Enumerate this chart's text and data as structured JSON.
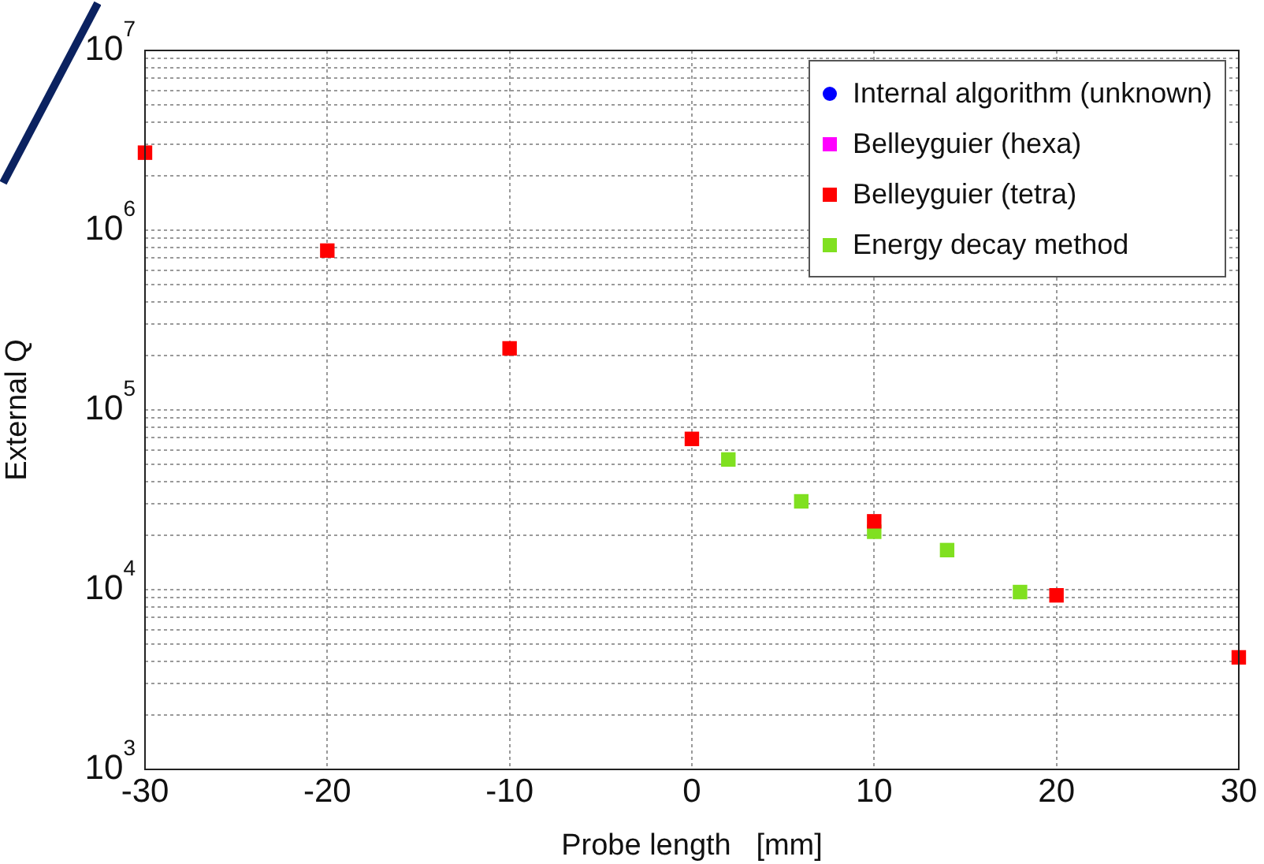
{
  "chart_data": {
    "type": "scatter",
    "xlabel": "Probe length   [mm]",
    "ylabel": "External Q",
    "log": "y",
    "xlim": [
      -30,
      30
    ],
    "xticks": [
      -30,
      -20,
      -10,
      0,
      10,
      20,
      30
    ],
    "ylim": [
      1000,
      10000000
    ],
    "yticks": [
      {
        "value": 1000,
        "label": "10$^{3}$"
      },
      {
        "value": 2000,
        "label": null
      },
      {
        "value": 3000,
        "label": null
      },
      {
        "value": 4000,
        "label": null
      },
      {
        "value": 5000,
        "label": null
      },
      {
        "value": 6000,
        "label": null
      },
      {
        "value": 7000,
        "label": null
      },
      {
        "value": 8000,
        "label": null
      },
      {
        "value": 9000,
        "label": null
      },
      {
        "value": 10000,
        "label": "10$^{4}$"
      },
      {
        "value": 20000,
        "label": null
      },
      {
        "value": 30000,
        "label": null
      },
      {
        "value": 40000,
        "label": null
      },
      {
        "value": 50000,
        "label": null
      },
      {
        "value": 60000,
        "label": null
      },
      {
        "value": 70000,
        "label": null
      },
      {
        "value": 80000,
        "label": null
      },
      {
        "value": 90000,
        "label": null
      },
      {
        "value": 100000,
        "label": "10$^{5}$"
      },
      {
        "value": 200000,
        "label": null
      },
      {
        "value": 300000,
        "label": null
      },
      {
        "value": 400000,
        "label": null
      },
      {
        "value": 500000,
        "label": null
      },
      {
        "value": 600000,
        "label": null
      },
      {
        "value": 700000,
        "label": null
      },
      {
        "value": 800000,
        "label": null
      },
      {
        "value": 900000,
        "label": null
      },
      {
        "value": 1000000,
        "label": "10$^{6}$"
      },
      {
        "value": 2000000,
        "label": null
      },
      {
        "value": 3000000,
        "label": null
      },
      {
        "value": 4000000,
        "label": null
      },
      {
        "value": 5000000,
        "label": null
      },
      {
        "value": 6000000,
        "label": null
      },
      {
        "value": 7000000,
        "label": null
      },
      {
        "value": 8000000,
        "label": null
      },
      {
        "value": 9000000,
        "label": null
      },
      {
        "value": 10000000,
        "label": "10$^{7}$"
      }
    ],
    "grid": true,
    "legend": "top right",
    "series": [
      {
        "name": "Internal algorithm (unknown)",
        "color": "#0000ff",
        "marker": "circle"
      },
      {
        "name": "Belleyguier (hexa)",
        "color": "#ff00ff",
        "marker": "square"
      },
      {
        "name": "Belleyguier (tetra)",
        "color": "#ff0000",
        "marker": "square",
        "x": [
          -30,
          -20,
          -10,
          0,
          10,
          20,
          30
        ],
        "values": [
          2700000,
          770000,
          220000,
          69000,
          24000,
          9300,
          4200
        ]
      },
      {
        "name": "Energy decay method",
        "color": "#80e020",
        "marker": "square",
        "x": [
          2,
          6,
          10,
          14,
          18
        ],
        "values": [
          53000,
          31000,
          21000,
          16600,
          9700
        ]
      }
    ]
  }
}
